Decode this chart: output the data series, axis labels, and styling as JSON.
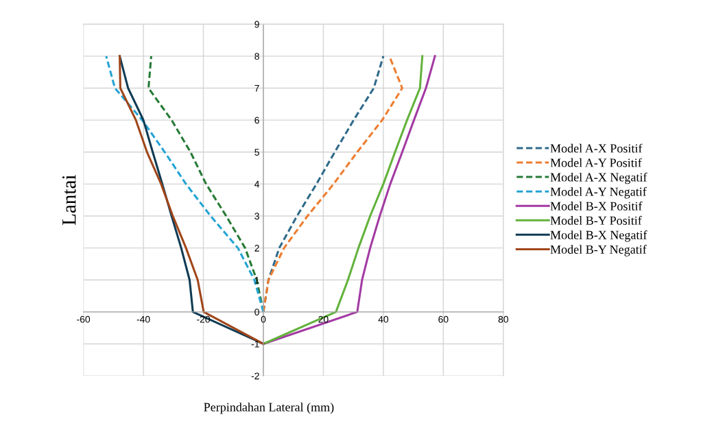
{
  "chart_data": {
    "type": "line",
    "xlabel": "Perpindahan Lateral (mm)",
    "ylabel": "Lantai",
    "xlim": [
      -60,
      80
    ],
    "xticks": [
      -60,
      -40,
      -20,
      0,
      20,
      40,
      60,
      80
    ],
    "ylim": [
      -2,
      9
    ],
    "yticks": [
      -2,
      -1,
      0,
      1,
      2,
      3,
      4,
      5,
      6,
      7,
      8,
      9
    ],
    "grid": true,
    "legend": "right",
    "marker": "none",
    "series": [
      {
        "name": "Model A-X Positif",
        "color": "#2f6a8a",
        "line_style": "dashed",
        "x": [
          0,
          1.7,
          5.3,
          11.2,
          17.7,
          23.8,
          30.1,
          36.8,
          40.0
        ],
        "values": [
          0,
          1,
          2,
          3,
          4,
          5,
          6,
          7,
          8
        ]
      },
      {
        "name": "Model A-Y Positif",
        "color": "#ed7d31",
        "line_style": "dashed",
        "x": [
          0,
          1.7,
          6.9,
          14.7,
          23.4,
          31.3,
          39.6,
          46.3,
          42.0
        ],
        "values": [
          0,
          1,
          2,
          3,
          4,
          5,
          6,
          7,
          8
        ]
      },
      {
        "name": "Model A-X Negatif",
        "color": "#267a36",
        "line_style": "dashed",
        "x": [
          0,
          -2.2,
          -6.1,
          -12.4,
          -19.1,
          -24.3,
          -30.6,
          -38.3,
          -37.4
        ],
        "values": [
          0,
          1,
          2,
          3,
          4,
          5,
          6,
          7,
          8
        ]
      },
      {
        "name": "Model A-Y Negatif",
        "color": "#24a3d4",
        "line_style": "dashed",
        "x": [
          0,
          -3.0,
          -8.5,
          -17.6,
          -25.8,
          -32.9,
          -40.4,
          -49.5,
          -52.4
        ],
        "values": [
          0,
          1,
          2,
          3,
          4,
          5,
          6,
          7,
          8
        ]
      },
      {
        "name": "Model B-X Positif",
        "color": "#a33aa3",
        "line_style": "solid",
        "x": [
          0,
          31.3,
          32.9,
          35.6,
          38.8,
          42.3,
          46.3,
          50.2,
          54.2,
          57.2
        ],
        "values": [
          -1,
          0,
          1,
          2,
          3,
          4,
          5,
          6,
          7,
          8
        ]
      },
      {
        "name": "Model B-Y Positif",
        "color": "#62b23c",
        "line_style": "solid",
        "x": [
          0,
          24.2,
          28.2,
          31.7,
          35.6,
          40.0,
          43.9,
          47.9,
          52.2,
          53.0
        ],
        "values": [
          -1,
          0,
          1,
          2,
          3,
          4,
          5,
          6,
          7,
          8
        ]
      },
      {
        "name": "Model B-X Negatif",
        "color": "#0f3b54",
        "line_style": "solid",
        "x": [
          0,
          -23.5,
          -24.6,
          -27.4,
          -30.6,
          -33.7,
          -36.9,
          -40.0,
          -45.1,
          -47.9
        ],
        "values": [
          -1,
          0,
          1,
          2,
          3,
          4,
          5,
          6,
          7,
          8
        ]
      },
      {
        "name": "Model B-Y Negatif",
        "color": "#a0461a",
        "line_style": "solid",
        "x": [
          0,
          -19.9,
          -21.9,
          -25.8,
          -30.2,
          -34.1,
          -38.8,
          -42.5,
          -47.7,
          -47.9
        ],
        "values": [
          -1,
          0,
          1,
          2,
          3,
          4,
          5,
          6,
          7,
          8
        ]
      }
    ]
  }
}
